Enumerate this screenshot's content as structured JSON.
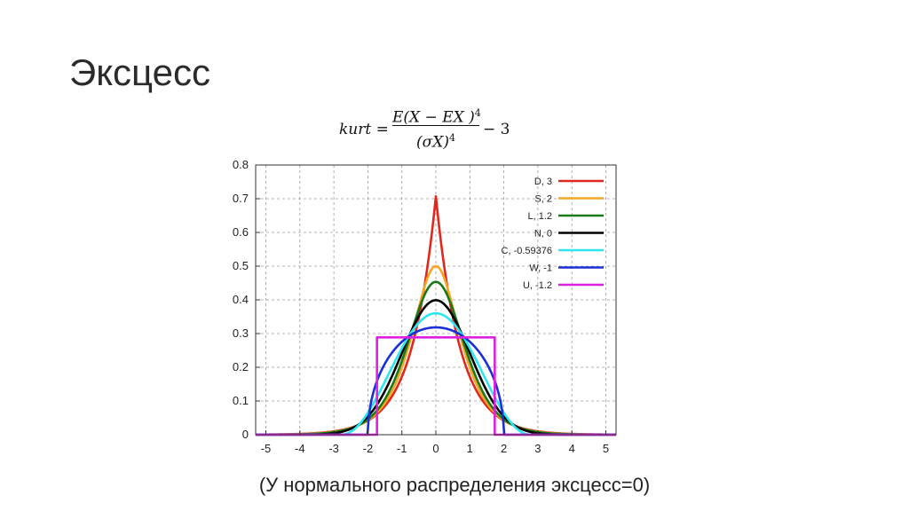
{
  "slide": {
    "title": "Эксцесс",
    "caption": "(У нормального распределения эксцесс=0)"
  },
  "formula": {
    "lhs": "kurt =",
    "numerator": "E(X − EX )",
    "numerator_exp": "4",
    "denominator": "(σX)",
    "denominator_exp": "4",
    "rhs": "− 3"
  },
  "chart_data": {
    "type": "line",
    "title": "",
    "xlabel": "",
    "ylabel": "",
    "xlim": [
      -5.3,
      5.3
    ],
    "ylim": [
      0,
      0.8
    ],
    "xticks": [
      "-5",
      "-4",
      "-3",
      "-2",
      "-1",
      "0",
      "1",
      "2",
      "3",
      "4",
      "5"
    ],
    "yticks": [
      "0",
      "0.1",
      "0.2",
      "0.3",
      "0.4",
      "0.5",
      "0.6",
      "0.7",
      "0.8"
    ],
    "grid": true,
    "legend_position": "top-right",
    "series": [
      {
        "name": "D,  3",
        "distribution": "laplace",
        "scale": 0.7071,
        "color": "#e0281e"
      },
      {
        "name": "S,  2",
        "distribution": "hyperbolic-secant",
        "scale": 1.0,
        "color": "#f5a623"
      },
      {
        "name": "L,  1.2",
        "distribution": "logistic",
        "scale": 0.5513,
        "color": "#1a7a1a"
      },
      {
        "name": "N,  0",
        "distribution": "normal",
        "scale": 1.0,
        "color": "#000000"
      },
      {
        "name": "C, -0.59376",
        "distribution": "raised-cosine",
        "scale": 2.7767,
        "color": "#2ee6f0"
      },
      {
        "name": "W, -1",
        "distribution": "wigner-semicircle",
        "scale": 2.0,
        "color": "#1a2fd6"
      },
      {
        "name": "U, -1.2",
        "distribution": "uniform",
        "scale": 1.7321,
        "color": "#e020e0"
      }
    ]
  }
}
